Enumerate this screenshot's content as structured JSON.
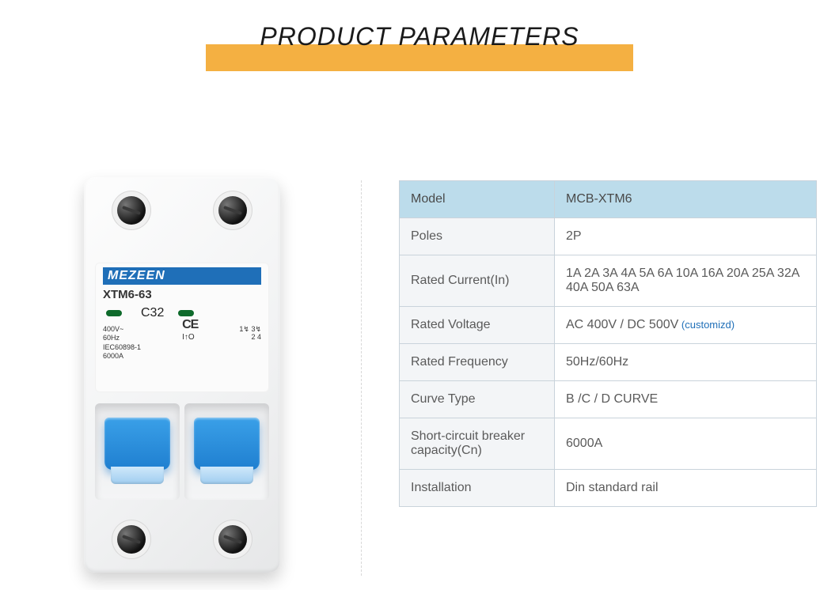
{
  "header": {
    "title": "PRODUCT PARAMETERS",
    "title_color": "#1a1a1a",
    "title_fontsize": 32,
    "bar_color": "#f4b042"
  },
  "product": {
    "brand": "MEZEEN",
    "brand_bar_color": "#1f6fb8",
    "model_label": "XTM6-63",
    "curve_label": "C32",
    "led_color": "#0e6a2b",
    "toggle_color": "#1f7fd0",
    "specs_left": "400V~\n60Hz\nIEC60898-1\n6000A",
    "ce_mark": "CE",
    "arrow_label": "I↑O",
    "terminal_label": "1↯ 3↯\n2  4",
    "body_bg": "#f2f3f4"
  },
  "table": {
    "header_bg": "#bcdceb",
    "key_bg": "#f3f5f7",
    "border_color": "#c9d3db",
    "text_color": "#5a5a5a",
    "note_color": "#1f6fb8",
    "col_key_width": 196,
    "rows": [
      {
        "key": "Model",
        "value": "MCB-XTM6"
      },
      {
        "key": "Poles",
        "value": "2P"
      },
      {
        "key": "Rated Current(In)",
        "value": "1A 2A 3A 4A 5A 6A 10A 16A 20A 25A 32A 40A 50A 63A"
      },
      {
        "key": "Rated Voltage",
        "value": "AC 400V / DC 500V",
        "note": "(customizd)"
      },
      {
        "key": "Rated Frequency",
        "value": "50Hz/60Hz"
      },
      {
        "key": "Curve Type",
        "value": "B /C / D CURVE"
      },
      {
        "key": "Short-circuit breaker capacity(Cn)",
        "value": "6000A"
      },
      {
        "key": "Installation",
        "value": "Din standard rail"
      }
    ]
  }
}
